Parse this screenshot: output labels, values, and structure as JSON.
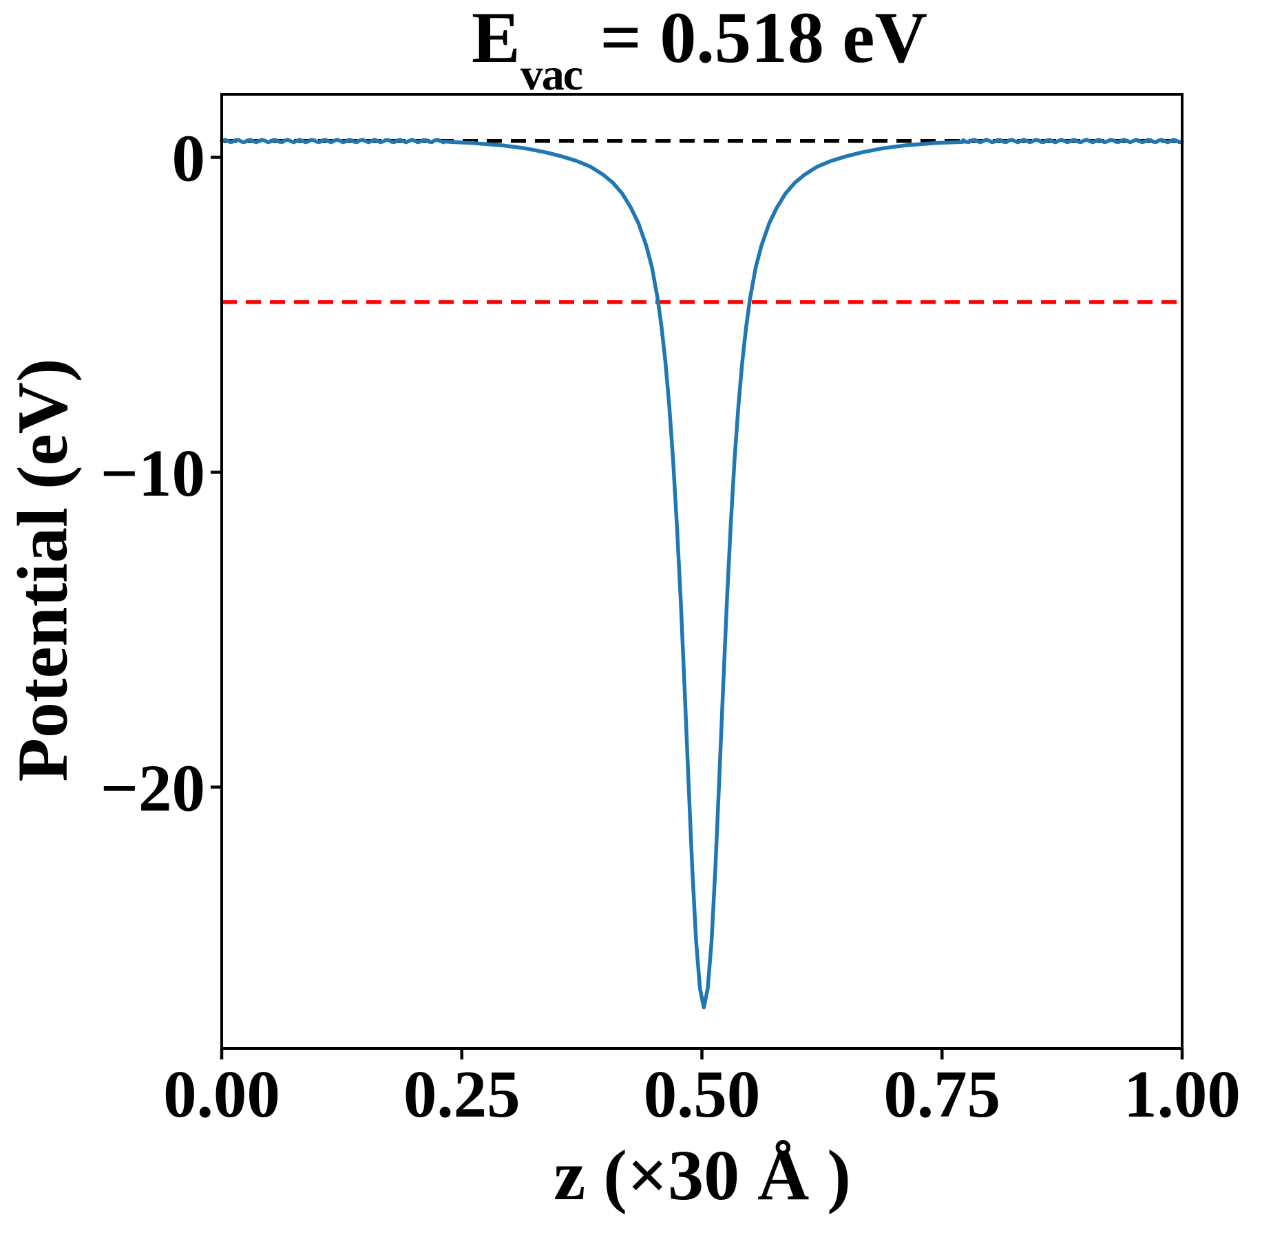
{
  "figure": {
    "title": {
      "base": "E",
      "sub": "vac",
      "rest": " = 0.518 eV"
    },
    "xlabel": "z (×30 Å )",
    "ylabel": "Potential (eV)"
  },
  "chart_data": {
    "type": "line",
    "title": "E_vac = 0.518 eV",
    "xlabel": "z (×30 Å )",
    "ylabel": "Potential (eV)",
    "xlim": [
      0.0,
      1.0
    ],
    "ylim": [
      -28.3,
      2.0
    ],
    "grid": false,
    "legend": "none",
    "x_ticks": [
      {
        "value": 0.0,
        "label": "0.00"
      },
      {
        "value": 0.25,
        "label": "0.25"
      },
      {
        "value": 0.5,
        "label": "0.50"
      },
      {
        "value": 0.75,
        "label": "0.75"
      },
      {
        "value": 1.0,
        "label": "1.00"
      }
    ],
    "y_ticks": [
      {
        "value": 0,
        "label": "0"
      },
      {
        "value": -10,
        "label": "−10"
      },
      {
        "value": -20,
        "label": "−20"
      }
    ],
    "reference_lines": [
      {
        "name": "vacuum-level-line",
        "value": 0.518,
        "color": "#000000",
        "style": "dashed"
      },
      {
        "name": "fermi-level-line",
        "value": -4.6,
        "color": "#ff0000",
        "style": "dashed"
      }
    ],
    "series": [
      {
        "name": "planar-averaged-potential",
        "color": "#1f77b4",
        "line_width": 5.5,
        "flat_level": 0.518,
        "ripple": {
          "amplitude": 0.04,
          "period": 0.013
        },
        "flat_zones": [
          [
            0.0,
            0.232
          ],
          [
            0.772,
            1.0
          ]
        ],
        "dip_minimum": {
          "z": 0.502,
          "value": -27.0
        },
        "dip_points": [
          [
            0.232,
            0.5
          ],
          [
            0.262,
            0.45
          ],
          [
            0.292,
            0.38
          ],
          [
            0.317,
            0.28
          ],
          [
            0.337,
            0.16
          ],
          [
            0.354,
            0.03
          ],
          [
            0.37,
            -0.12
          ],
          [
            0.384,
            -0.3
          ],
          [
            0.397,
            -0.55
          ],
          [
            0.407,
            -0.8
          ],
          [
            0.417,
            -1.15
          ],
          [
            0.426,
            -1.6
          ],
          [
            0.434,
            -2.1
          ],
          [
            0.442,
            -2.8
          ],
          [
            0.448,
            -3.5
          ],
          [
            0.454,
            -4.5
          ],
          [
            0.458,
            -5.4
          ],
          [
            0.462,
            -6.5
          ],
          [
            0.466,
            -7.9
          ],
          [
            0.47,
            -9.6
          ],
          [
            0.474,
            -11.7
          ],
          [
            0.478,
            -14.1
          ],
          [
            0.482,
            -16.9
          ],
          [
            0.486,
            -19.8
          ],
          [
            0.49,
            -22.6
          ],
          [
            0.494,
            -24.9
          ],
          [
            0.498,
            -26.4
          ],
          [
            0.502,
            -27.0
          ],
          [
            0.506,
            -26.4
          ],
          [
            0.51,
            -24.9
          ],
          [
            0.514,
            -22.6
          ],
          [
            0.518,
            -19.8
          ],
          [
            0.522,
            -16.9
          ],
          [
            0.526,
            -14.1
          ],
          [
            0.53,
            -11.7
          ],
          [
            0.534,
            -9.6
          ],
          [
            0.538,
            -7.9
          ],
          [
            0.542,
            -6.5
          ],
          [
            0.546,
            -5.4
          ],
          [
            0.55,
            -4.5
          ],
          [
            0.556,
            -3.5
          ],
          [
            0.562,
            -2.8
          ],
          [
            0.57,
            -2.1
          ],
          [
            0.578,
            -1.6
          ],
          [
            0.587,
            -1.15
          ],
          [
            0.597,
            -0.8
          ],
          [
            0.607,
            -0.55
          ],
          [
            0.62,
            -0.3
          ],
          [
            0.634,
            -0.12
          ],
          [
            0.65,
            0.03
          ],
          [
            0.667,
            0.16
          ],
          [
            0.687,
            0.28
          ],
          [
            0.712,
            0.38
          ],
          [
            0.742,
            0.45
          ],
          [
            0.772,
            0.49
          ]
        ]
      }
    ]
  }
}
